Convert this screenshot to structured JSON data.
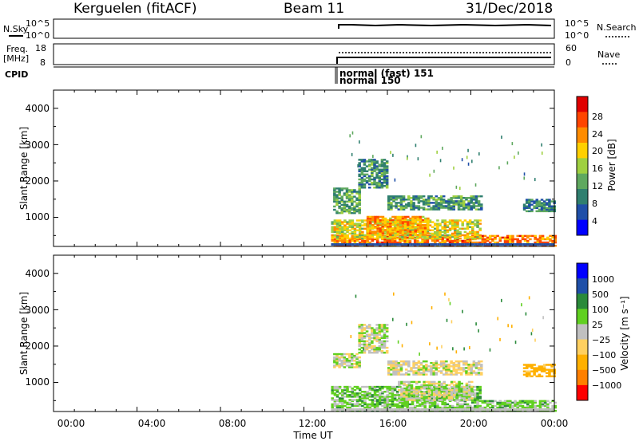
{
  "header": {
    "station": "Kerguelen (fitACF)",
    "beam": "Beam 11",
    "date": "31/Dec/2018"
  },
  "top_panels": {
    "nsky_label": "N.Sky",
    "nsearch_label": "N.Search",
    "freq_label_1": "Freq.",
    "freq_label_2": "[MHz]",
    "nave_label": "Nave",
    "cpid_label": "CPID",
    "nsky_ticks": [
      "10^5",
      "10^0"
    ],
    "nsearch_ticks": [
      "10^5",
      "10^0"
    ],
    "freq_ticks": [
      "18",
      "8"
    ],
    "nave_ticks": [
      "60",
      "0"
    ],
    "cpid_entries": [
      {
        "text": "normal (fast) 151"
      },
      {
        "text": "normal 150"
      }
    ]
  },
  "power_panel": {
    "ylabel": "Slant Range [km]",
    "yticks": [
      "4000",
      "3000",
      "2000",
      "1000"
    ],
    "colorbar_label": "Power [dB]",
    "colorbar_ticks": [
      "28",
      "24",
      "20",
      "16",
      "12",
      "8",
      "4"
    ]
  },
  "velocity_panel": {
    "ylabel": "Slant Range [km]",
    "yticks": [
      "4000",
      "3000",
      "2000",
      "1000"
    ],
    "colorbar_label": "Velocity [m s⁻¹]",
    "colorbar_ticks": [
      "1000",
      "500",
      "100",
      "25",
      "−25",
      "−100",
      "−500",
      "−1000"
    ]
  },
  "xaxis": {
    "label": "Time UT",
    "ticks": [
      "00:00",
      "04:00",
      "08:00",
      "12:00",
      "16:00",
      "20:00",
      "00:00"
    ]
  },
  "colors": {
    "power_scale": [
      "#0000ff",
      "#1f4fa8",
      "#2f7f6f",
      "#5fa85f",
      "#9fd040",
      "#ffd000",
      "#ff8c00",
      "#ff4500",
      "#e00000"
    ],
    "velocity_scale": [
      "#ff0000",
      "#ff8000",
      "#ffb000",
      "#ffd060",
      "#c0c0c0",
      "#60d020",
      "#2a8a3a",
      "#1f4fa8",
      "#0000ff"
    ]
  },
  "chart_data": [
    {
      "type": "heatmap",
      "title": "Kerguelen (fitACF)",
      "xlabel": "Time UT",
      "ylabel": "Slant Range [km]",
      "colorbar": "Power [dB]",
      "xlim": [
        0,
        24
      ],
      "ylim": [
        200,
        4500
      ],
      "clim": [
        0,
        32
      ],
      "echo_regions": [
        {
          "t_start": 13.3,
          "t_end": 24.0,
          "range_min": 200,
          "range_max": 500,
          "value": 24
        },
        {
          "t_start": 13.3,
          "t_end": 20.5,
          "range_min": 400,
          "range_max": 900,
          "value": 18
        },
        {
          "t_start": 15.0,
          "t_end": 18.0,
          "range_min": 500,
          "range_max": 1000,
          "value": 22
        },
        {
          "t_start": 13.4,
          "t_end": 14.6,
          "range_min": 1100,
          "range_max": 1800,
          "value": 12
        },
        {
          "t_start": 14.6,
          "t_end": 16.0,
          "range_min": 1800,
          "range_max": 2600,
          "value": 10
        },
        {
          "t_start": 16.0,
          "t_end": 20.5,
          "range_min": 1200,
          "range_max": 1600,
          "value": 11
        },
        {
          "t_start": 22.5,
          "t_end": 24.0,
          "range_min": 1150,
          "range_max": 1500,
          "value": 9
        }
      ]
    },
    {
      "type": "heatmap",
      "title": "Kerguelen (fitACF)",
      "xlabel": "Time UT",
      "ylabel": "Slant Range [km]",
      "colorbar": "Velocity [m s⁻¹]",
      "xlim": [
        0,
        24
      ],
      "ylim": [
        200,
        4500
      ],
      "clim": [
        -1000,
        1000
      ],
      "echo_regions": [
        {
          "t_start": 13.3,
          "t_end": 24.0,
          "range_min": 200,
          "range_max": 500,
          "value": 50
        },
        {
          "t_start": 13.3,
          "t_end": 20.5,
          "range_min": 500,
          "range_max": 900,
          "value": 60
        },
        {
          "t_start": 16.5,
          "t_end": 20.0,
          "range_min": 500,
          "range_max": 1000,
          "value": 0
        },
        {
          "t_start": 13.4,
          "t_end": 14.6,
          "range_min": 1400,
          "range_max": 1800,
          "value": 0
        },
        {
          "t_start": 14.6,
          "t_end": 16.0,
          "range_min": 1800,
          "range_max": 2600,
          "value": 0
        },
        {
          "t_start": 16.0,
          "t_end": 20.5,
          "range_min": 1200,
          "range_max": 1600,
          "value": -20
        },
        {
          "t_start": 22.5,
          "t_end": 24.0,
          "range_min": 1150,
          "range_max": 1500,
          "value": -150
        }
      ]
    }
  ]
}
